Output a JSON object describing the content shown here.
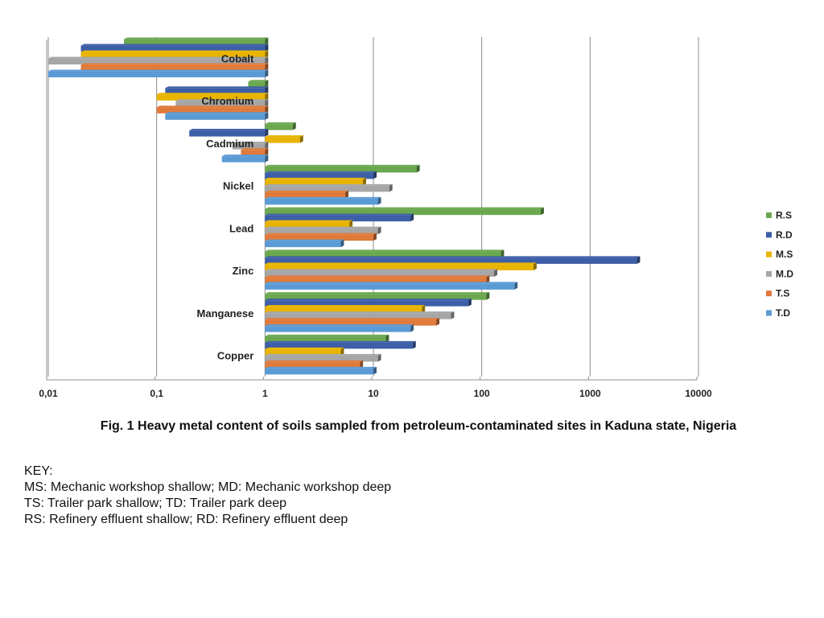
{
  "chart_data": {
    "type": "bar",
    "orientation": "horizontal",
    "x_scale": "log",
    "x_ticks": [
      "0,01",
      "0,1",
      "1",
      "10",
      "100",
      "1000",
      "10000"
    ],
    "xlim": [
      0.01,
      10000
    ],
    "grid": "vertical",
    "legend_position": "right",
    "categories": [
      "Cobalt",
      "Chromium",
      "Cadmium",
      "Nickel",
      "Lead",
      "Zinc",
      "Manganese",
      "Copper"
    ],
    "series": [
      {
        "name": "R.S",
        "color": "#6aa84f",
        "values": [
          0.05,
          0.7,
          1.8,
          25,
          350,
          150,
          110,
          13
        ]
      },
      {
        "name": "R.D",
        "color": "#3d5fa8",
        "values": [
          0.02,
          0.12,
          0.2,
          10,
          22,
          2700,
          75,
          23
        ]
      },
      {
        "name": "M.S",
        "color": "#e8b400",
        "values": [
          0.02,
          0.1,
          2.1,
          8,
          6,
          300,
          28,
          5
        ]
      },
      {
        "name": "M.D",
        "color": "#a6a6a6",
        "values": [
          0.01,
          0.15,
          0.5,
          14,
          11,
          130,
          52,
          11
        ]
      },
      {
        "name": "T.S",
        "color": "#e07a3a",
        "values": [
          0.02,
          0.1,
          0.6,
          5.5,
          10,
          110,
          38,
          7.5
        ]
      },
      {
        "name": "T.D",
        "color": "#5b9bd5",
        "values": [
          0.01,
          0.12,
          0.4,
          11,
          5,
          200,
          22,
          10
        ]
      }
    ]
  },
  "caption": "Fig. 1 Heavy metal content of soils sampled from petroleum-contaminated sites in Kaduna state, Nigeria",
  "key": {
    "title": "KEY:",
    "lines": [
      "MS: Mechanic workshop shallow; MD: Mechanic workshop deep",
      "TS: Trailer park shallow; TD: Trailer park deep",
      "RS: Refinery effluent shallow; RD: Refinery effluent deep"
    ]
  }
}
